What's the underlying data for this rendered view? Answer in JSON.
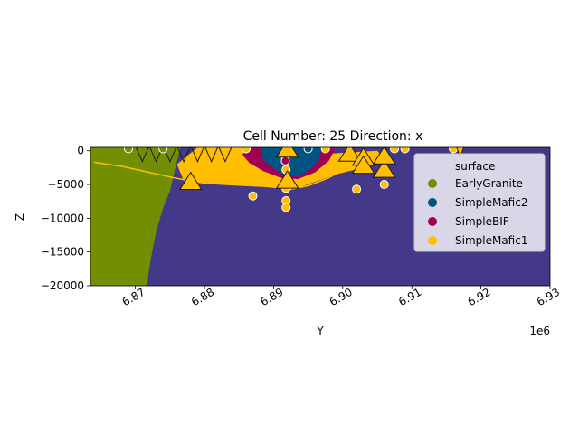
{
  "chart_data": {
    "type": "scatter",
    "title": "Cell Number: 25 Direction: x",
    "xlabel": "Y",
    "ylabel": "Z",
    "x_offset_label": "1e6",
    "xlim": [
      6.8635,
      6.93
    ],
    "ylim": [
      -20000,
      500
    ],
    "x_ticks": [
      6.87,
      6.88,
      6.89,
      6.9,
      6.91,
      6.92,
      6.93
    ],
    "x_tick_labels": [
      "6.87",
      "6.88",
      "6.89",
      "6.90",
      "6.91",
      "6.92",
      "6.93"
    ],
    "y_ticks": [
      0,
      -5000,
      -10000,
      -15000,
      -20000
    ],
    "y_tick_labels": [
      "0",
      "−5000",
      "−10000",
      "−15000",
      "−20000"
    ],
    "legend": {
      "title": "surface",
      "placement": "top-right",
      "entries": [
        {
          "name": "EarlyGranite",
          "color": "#728f02"
        },
        {
          "name": "SimpleMafic2",
          "color": "#015482"
        },
        {
          "name": "SimpleBIF",
          "color": "#9f0052"
        },
        {
          "name": "SimpleMafic1",
          "color": "#ffbe00"
        }
      ]
    },
    "basement_color": "#443988",
    "regions": [
      {
        "name": "EarlyGranite",
        "color": "#728f02",
        "polygon": [
          [
            6.8635,
            500
          ],
          [
            6.8765,
            500
          ],
          [
            6.875,
            -6000
          ],
          [
            6.874,
            -8500
          ],
          [
            6.873,
            -12000
          ],
          [
            6.8725,
            -14500
          ],
          [
            6.872,
            -17500
          ],
          [
            6.8717,
            -20000
          ],
          [
            6.8635,
            -20000
          ]
        ]
      },
      {
        "name": "SimpleMafic1",
        "color": "#ffbe00",
        "polygon": [
          [
            6.879,
            500
          ],
          [
            6.885,
            500
          ],
          [
            6.888,
            0
          ],
          [
            6.8915,
            -2000
          ],
          [
            6.8935,
            -2000
          ],
          [
            6.897,
            -500
          ],
          [
            6.9,
            -300
          ],
          [
            6.905,
            0
          ],
          [
            6.906,
            -1200
          ],
          [
            6.903,
            -2500
          ],
          [
            6.899,
            -3500
          ],
          [
            6.896,
            -4600
          ],
          [
            6.893,
            -5700
          ],
          [
            6.891,
            -5500
          ],
          [
            6.888,
            -5200
          ],
          [
            6.885,
            -5100
          ],
          [
            6.882,
            -5000
          ],
          [
            6.88,
            -4700
          ],
          [
            6.877,
            -4400
          ],
          [
            6.876,
            -2000
          ]
        ]
      },
      {
        "name": "SimpleBIF",
        "color": "#9f0052",
        "polygon": [
          [
            6.886,
            500
          ],
          [
            6.899,
            500
          ],
          [
            6.898,
            -1500
          ],
          [
            6.896,
            -3200
          ],
          [
            6.8935,
            -4200
          ],
          [
            6.891,
            -4000
          ],
          [
            6.8885,
            -3000
          ],
          [
            6.8865,
            -1800
          ],
          [
            6.8855,
            -600
          ]
        ]
      },
      {
        "name": "SimpleMafic2",
        "color": "#015482",
        "polygon": [
          [
            6.888,
            500
          ],
          [
            6.897,
            500
          ],
          [
            6.8965,
            -1500
          ],
          [
            6.895,
            -3000
          ],
          [
            6.8935,
            -3800
          ],
          [
            6.8915,
            -3600
          ],
          [
            6.89,
            -2600
          ],
          [
            6.8885,
            -1400
          ]
        ]
      }
    ],
    "orange_line": [
      [
        6.864,
        -1700
      ],
      [
        6.868,
        -2300
      ],
      [
        6.872,
        -3200
      ],
      [
        6.876,
        -4100
      ],
      [
        6.88,
        -4800
      ],
      [
        6.885,
        -5100
      ],
      [
        6.889,
        -5300
      ],
      [
        6.8925,
        -5700
      ],
      [
        6.895,
        -5200
      ],
      [
        6.898,
        -4000
      ],
      [
        6.901,
        -2300
      ],
      [
        6.904,
        -1000
      ],
      [
        6.906,
        -300
      ]
    ],
    "points": [
      {
        "x": 6.869,
        "y": 300,
        "surface": "EarlyGranite"
      },
      {
        "x": 6.874,
        "y": 300,
        "surface": "EarlyGranite"
      },
      {
        "x": 6.886,
        "y": 300,
        "surface": "SimpleMafic2"
      },
      {
        "x": 6.895,
        "y": 300,
        "surface": "SimpleMafic2"
      },
      {
        "x": 6.8917,
        "y": -300,
        "surface": "SimpleBIF"
      },
      {
        "x": 6.8917,
        "y": -900,
        "surface": "SimpleBIF"
      },
      {
        "x": 6.8917,
        "y": -1500,
        "surface": "SimpleBIF"
      },
      {
        "x": 6.887,
        "y": -6700,
        "surface": "SimpleMafic1"
      },
      {
        "x": 6.8918,
        "y": -2800,
        "surface": "SimpleMafic1"
      },
      {
        "x": 6.8918,
        "y": -4800,
        "surface": "SimpleMafic1"
      },
      {
        "x": 6.8918,
        "y": -5600,
        "surface": "SimpleMafic1"
      },
      {
        "x": 6.8918,
        "y": -7400,
        "surface": "SimpleMafic1"
      },
      {
        "x": 6.8918,
        "y": -8400,
        "surface": "SimpleMafic1"
      },
      {
        "x": 6.8975,
        "y": 300,
        "surface": "SimpleMafic1"
      },
      {
        "x": 6.902,
        "y": -5700,
        "surface": "SimpleMafic1"
      },
      {
        "x": 6.906,
        "y": -5000,
        "surface": "SimpleMafic1"
      },
      {
        "x": 6.9075,
        "y": 300,
        "surface": "SimpleMafic1"
      },
      {
        "x": 6.909,
        "y": 300,
        "surface": "SimpleMafic1"
      },
      {
        "x": 6.916,
        "y": 300,
        "surface": "SimpleMafic1"
      },
      {
        "x": 6.886,
        "y": 300,
        "surface": "SimpleMafic1"
      }
    ],
    "orientation_arrows": [
      {
        "x": 6.878,
        "y": -4800,
        "dir": "up"
      },
      {
        "x": 6.892,
        "y": -4600,
        "dir": "up"
      },
      {
        "x": 6.901,
        "y": -600,
        "dir": "up"
      },
      {
        "x": 6.903,
        "y": -1200,
        "dir": "up"
      },
      {
        "x": 6.903,
        "y": -2400,
        "dir": "up"
      },
      {
        "x": 6.906,
        "y": -3000,
        "dir": "up"
      },
      {
        "x": 6.906,
        "y": -1000,
        "dir": "up"
      },
      {
        "x": 6.892,
        "y": 0,
        "dir": "up"
      },
      {
        "x": 6.917,
        "y": 200,
        "dir": "down"
      }
    ],
    "top_chevrons_x": [
      6.871,
      6.873,
      6.875,
      6.877,
      6.879,
      6.881,
      6.883
    ]
  }
}
